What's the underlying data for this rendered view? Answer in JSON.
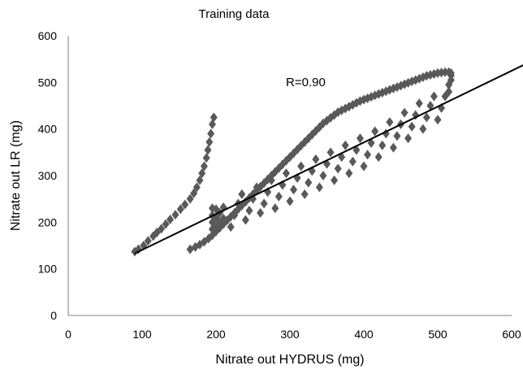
{
  "chart_data": {
    "type": "scatter",
    "title": "Training data",
    "xlabel": "Nitrate out HYDRUS (mg)",
    "ylabel": "Nitrate out LR (mg)",
    "xlim": [
      0,
      600
    ],
    "ylim": [
      0,
      600
    ],
    "xticks": [
      0,
      100,
      200,
      300,
      400,
      500,
      600
    ],
    "yticks": [
      0,
      100,
      200,
      300,
      400,
      500,
      600
    ],
    "annotation": "R=0.90",
    "grid": false,
    "legend": "none",
    "marker": "diamond",
    "marker_color": "#595959",
    "line_color": "#000000",
    "regression_line": {
      "x": [
        90,
        630
      ],
      "y": [
        133,
        548
      ]
    },
    "series": [
      {
        "values": [
          [
            90,
            137
          ],
          [
            95,
            142
          ],
          [
            102,
            150
          ],
          [
            108,
            160
          ],
          [
            115,
            170
          ],
          [
            120,
            178
          ],
          [
            126,
            186
          ],
          [
            132,
            196
          ],
          [
            138,
            206
          ],
          [
            145,
            216
          ],
          [
            152,
            228
          ],
          [
            158,
            238
          ],
          [
            165,
            250
          ],
          [
            170,
            262
          ],
          [
            174,
            275
          ],
          [
            178,
            290
          ],
          [
            181,
            305
          ],
          [
            184,
            320
          ],
          [
            187,
            338
          ],
          [
            189,
            355
          ],
          [
            191,
            372
          ],
          [
            193,
            390
          ],
          [
            195,
            410
          ],
          [
            197,
            425
          ],
          [
            165,
            142
          ],
          [
            172,
            147
          ],
          [
            178,
            152
          ],
          [
            184,
            158
          ],
          [
            190,
            165
          ],
          [
            195,
            172
          ],
          [
            200,
            180
          ],
          [
            205,
            188
          ],
          [
            210,
            196
          ],
          [
            215,
            204
          ],
          [
            220,
            212
          ],
          [
            225,
            220
          ],
          [
            230,
            228
          ],
          [
            235,
            236
          ],
          [
            240,
            244
          ],
          [
            245,
            252
          ],
          [
            250,
            260
          ],
          [
            255,
            268
          ],
          [
            260,
            276
          ],
          [
            265,
            284
          ],
          [
            270,
            292
          ],
          [
            275,
            300
          ],
          [
            280,
            308
          ],
          [
            285,
            316
          ],
          [
            290,
            324
          ],
          [
            295,
            332
          ],
          [
            300,
            340
          ],
          [
            305,
            348
          ],
          [
            310,
            356
          ],
          [
            315,
            364
          ],
          [
            320,
            372
          ],
          [
            325,
            380
          ],
          [
            330,
            388
          ],
          [
            335,
            396
          ],
          [
            340,
            404
          ],
          [
            345,
            412
          ],
          [
            350,
            418
          ],
          [
            355,
            424
          ],
          [
            360,
            430
          ],
          [
            365,
            436
          ],
          [
            370,
            440
          ],
          [
            375,
            444
          ],
          [
            380,
            448
          ],
          [
            385,
            452
          ],
          [
            390,
            456
          ],
          [
            395,
            460
          ],
          [
            400,
            463
          ],
          [
            405,
            466
          ],
          [
            410,
            469
          ],
          [
            415,
            472
          ],
          [
            420,
            475
          ],
          [
            425,
            478
          ],
          [
            430,
            481
          ],
          [
            435,
            484
          ],
          [
            440,
            487
          ],
          [
            445,
            490
          ],
          [
            450,
            493
          ],
          [
            455,
            496
          ],
          [
            460,
            499
          ],
          [
            465,
            502
          ],
          [
            470,
            505
          ],
          [
            475,
            508
          ],
          [
            480,
            511
          ],
          [
            485,
            514
          ],
          [
            490,
            516
          ],
          [
            495,
            518
          ],
          [
            500,
            520
          ],
          [
            505,
            521
          ],
          [
            510,
            522
          ],
          [
            515,
            522
          ],
          [
            518,
            520
          ],
          [
            195,
            185
          ],
          [
            195,
            200
          ],
          [
            195,
            215
          ],
          [
            195,
            230
          ],
          [
            200,
            190
          ],
          [
            200,
            210
          ],
          [
            200,
            228
          ],
          [
            205,
            200
          ],
          [
            205,
            220
          ],
          [
            210,
            208
          ],
          [
            210,
            232
          ],
          [
            220,
            190
          ],
          [
            225,
            215
          ],
          [
            230,
            240
          ],
          [
            235,
            260
          ],
          [
            240,
            205
          ],
          [
            245,
            225
          ],
          [
            250,
            250
          ],
          [
            255,
            275
          ],
          [
            260,
            220
          ],
          [
            265,
            240
          ],
          [
            270,
            265
          ],
          [
            275,
            290
          ],
          [
            280,
            230
          ],
          [
            285,
            255
          ],
          [
            290,
            280
          ],
          [
            295,
            305
          ],
          [
            300,
            245
          ],
          [
            305,
            270
          ],
          [
            310,
            295
          ],
          [
            315,
            320
          ],
          [
            320,
            260
          ],
          [
            325,
            285
          ],
          [
            330,
            310
          ],
          [
            335,
            335
          ],
          [
            340,
            275
          ],
          [
            345,
            300
          ],
          [
            350,
            325
          ],
          [
            355,
            350
          ],
          [
            360,
            290
          ],
          [
            365,
            315
          ],
          [
            370,
            340
          ],
          [
            375,
            365
          ],
          [
            380,
            305
          ],
          [
            385,
            330
          ],
          [
            390,
            355
          ],
          [
            395,
            380
          ],
          [
            400,
            320
          ],
          [
            405,
            345
          ],
          [
            410,
            370
          ],
          [
            415,
            395
          ],
          [
            420,
            340
          ],
          [
            425,
            365
          ],
          [
            430,
            390
          ],
          [
            435,
            415
          ],
          [
            440,
            360
          ],
          [
            445,
            385
          ],
          [
            450,
            410
          ],
          [
            455,
            435
          ],
          [
            460,
            380
          ],
          [
            465,
            405
          ],
          [
            470,
            430
          ],
          [
            475,
            455
          ],
          [
            480,
            400
          ],
          [
            485,
            425
          ],
          [
            490,
            450
          ],
          [
            495,
            470
          ],
          [
            500,
            420
          ],
          [
            505,
            445
          ],
          [
            510,
            470
          ],
          [
            515,
            495
          ],
          [
            515,
            480
          ],
          [
            518,
            505
          ],
          [
            518,
            515
          ]
        ]
      }
    ]
  }
}
